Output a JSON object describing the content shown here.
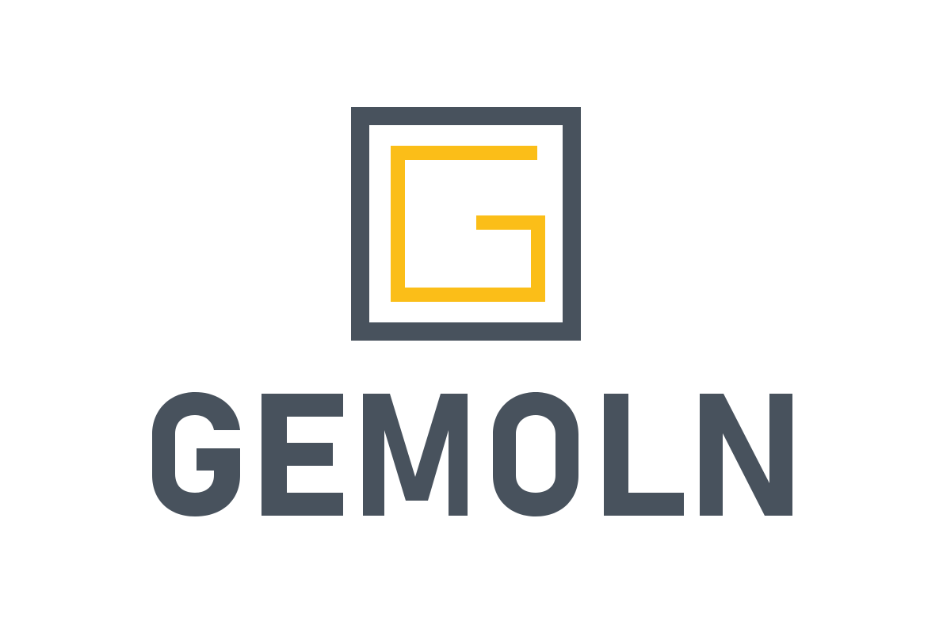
{
  "logo": {
    "wordmark": "GEMOLN",
    "monogram": "G",
    "emblem_icon": "square-frame-with-g-icon"
  },
  "colors": {
    "background": "#ffffff",
    "primary": "#48525d",
    "accent": "#fbbe18"
  }
}
